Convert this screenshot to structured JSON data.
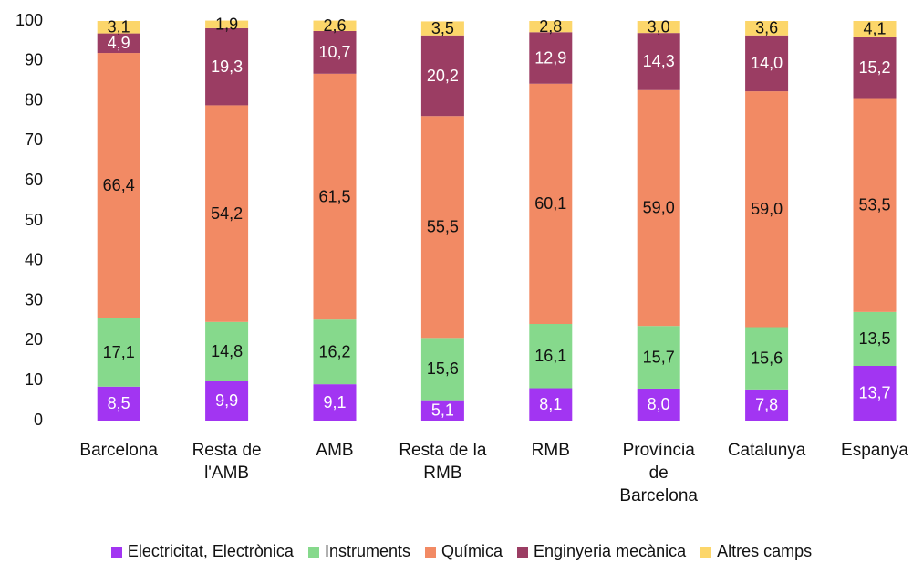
{
  "chart_data": {
    "type": "stacked_bar",
    "categories": [
      "Barcelona",
      "Resta de l'AMB",
      "AMB",
      "Resta de la RMB",
      "RMB",
      "Província de Barcelona",
      "Catalunya",
      "Espanya"
    ],
    "series": [
      {
        "name": "Electricitat, Electrònica",
        "color": "#a235f2",
        "label_color": "#ffffff",
        "values": [
          8.5,
          9.9,
          9.1,
          5.1,
          8.1,
          8.0,
          7.8,
          13.7
        ],
        "value_labels": [
          "8,5",
          "9,9",
          "9,1",
          "5,1",
          "8,1",
          "8,0",
          "7,8",
          "13,7"
        ]
      },
      {
        "name": "Instruments",
        "color": "#86d98c",
        "label_color": "#111111",
        "values": [
          17.1,
          14.8,
          16.2,
          15.6,
          16.1,
          15.7,
          15.6,
          13.5
        ],
        "value_labels": [
          "17,1",
          "14,8",
          "16,2",
          "15,6",
          "16,1",
          "15,7",
          "15,6",
          "13,5"
        ]
      },
      {
        "name": "Química",
        "color": "#f28a64",
        "label_color": "#111111",
        "values": [
          66.4,
          54.2,
          61.5,
          55.5,
          60.1,
          59.0,
          59.0,
          53.5
        ],
        "value_labels": [
          "66,4",
          "54,2",
          "61,5",
          "55,5",
          "60,1",
          "59,0",
          "59,0",
          "53,5"
        ]
      },
      {
        "name": "Enginyeria mecànica",
        "color": "#9b3d63",
        "label_color": "#ffffff",
        "values": [
          4.9,
          19.3,
          10.7,
          20.2,
          12.9,
          14.3,
          14.0,
          15.2
        ],
        "value_labels": [
          "4,9",
          "19,3",
          "10,7",
          "20,2",
          "12,9",
          "14,3",
          "14,0",
          "15,2"
        ]
      },
      {
        "name": "Altres camps",
        "color": "#fcd66a",
        "label_color": "#111111",
        "values": [
          3.1,
          1.9,
          2.6,
          3.5,
          2.8,
          3.0,
          3.6,
          4.1
        ],
        "value_labels": [
          "3,1",
          "1,9",
          "2,6",
          "3,5",
          "2,8",
          "3,0",
          "3,6",
          "4,1"
        ]
      }
    ],
    "ylim": [
      0,
      100
    ],
    "yticks": [
      0,
      10,
      20,
      30,
      40,
      50,
      60,
      70,
      80,
      90,
      100
    ],
    "grid": false,
    "legend": "bottom"
  }
}
